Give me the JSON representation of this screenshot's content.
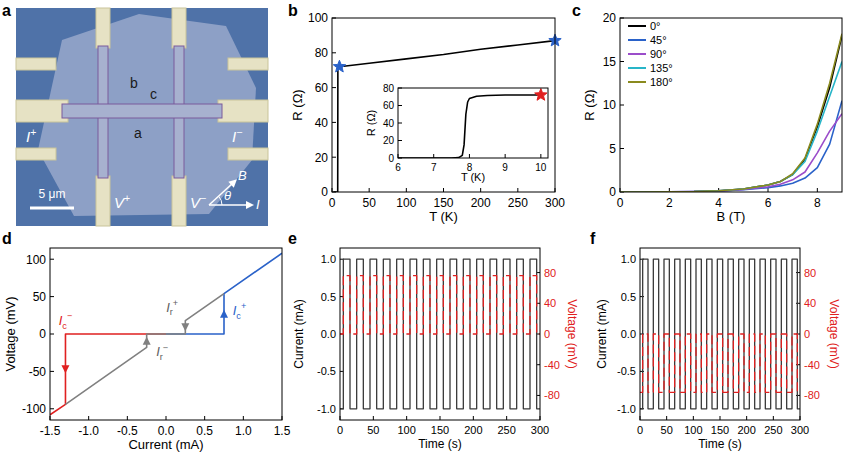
{
  "chart_data": [
    {
      "type": "image",
      "panel_label": "a",
      "labels": [
        "I+",
        "I−",
        "V+",
        "V−",
        "a",
        "b",
        "c"
      ],
      "scale_bar": "5 μm",
      "axis_labels": [
        "B",
        "θ",
        "I"
      ]
    },
    {
      "type": "line",
      "panel_label": "b",
      "x_label": "T (K)",
      "y_label": "R (Ω)",
      "xlim": [
        0,
        300
      ],
      "xticks": [
        0,
        50,
        100,
        150,
        200,
        250,
        300
      ],
      "ylim": [
        0,
        100
      ],
      "yticks": [
        0,
        20,
        40,
        60,
        80,
        100
      ],
      "x": [
        2,
        5,
        7,
        7.7,
        7.9,
        8.5,
        10,
        50,
        100,
        150,
        200,
        250,
        300
      ],
      "series": [
        {
          "color": "#000000",
          "values": [
            0,
            0,
            0,
            0,
            70,
            72,
            72,
            74,
            76.5,
            79,
            82,
            84.5,
            87
          ]
        },
        {
          "type": "scatter",
          "marker": "star",
          "color": "#2a62c9",
          "x": [
            10,
            300
          ],
          "values": [
            72,
            87
          ]
        }
      ],
      "inset": {
        "type": "line",
        "x_label": "T (K)",
        "y_label": "R (Ω)",
        "xlim": [
          6,
          10.2
        ],
        "xticks": [
          6,
          7,
          8,
          9,
          10
        ],
        "ylim": [
          0,
          80
        ],
        "yticks": [
          0,
          20,
          40,
          60,
          80
        ],
        "x": [
          6,
          7,
          7.5,
          7.7,
          7.8,
          7.85,
          7.9,
          7.95,
          8,
          8.2,
          8.5,
          9,
          9.5,
          10
        ],
        "series": [
          {
            "color": "#000000",
            "values": [
              0,
              0,
              0,
              0.5,
              3,
              15,
              50,
              64,
              68,
              70.5,
              71.5,
              72,
              72,
              72
            ]
          },
          {
            "type": "scatter",
            "marker": "star",
            "color": "#e02020",
            "x": [
              10
            ],
            "values": [
              72
            ]
          }
        ]
      }
    },
    {
      "type": "line",
      "panel_label": "c",
      "x_label": "B (T)",
      "y_label": "R (Ω)",
      "xlim": [
        0,
        9
      ],
      "xticks": [
        0,
        2,
        4,
        6,
        8
      ],
      "ylim": [
        0,
        20
      ],
      "yticks": [
        0,
        5,
        10,
        15,
        20
      ],
      "legend": "upper left",
      "x": [
        0,
        1,
        2,
        3,
        4,
        5,
        6,
        6.5,
        7,
        7.5,
        8,
        8.5,
        9
      ],
      "series": [
        {
          "name": "0°",
          "color": "#000000",
          "values": [
            0,
            0,
            0.02,
            0.05,
            0.15,
            0.35,
            0.8,
            1.2,
            2.0,
            3.8,
            7.5,
            12,
            18
          ]
        },
        {
          "name": "45°",
          "color": "#2a62c9",
          "values": [
            0,
            0,
            0.02,
            0.05,
            0.1,
            0.25,
            0.5,
            0.7,
            1.0,
            1.6,
            2.8,
            5.5,
            10.5
          ]
        },
        {
          "name": "90°",
          "color": "#9b4dca",
          "values": [
            0,
            0,
            0.02,
            0.05,
            0.1,
            0.3,
            0.6,
            0.9,
            1.4,
            2.3,
            4.5,
            7,
            9
          ]
        },
        {
          "name": "135°",
          "color": "#28b5c8",
          "values": [
            0,
            0,
            0.02,
            0.05,
            0.15,
            0.35,
            0.8,
            1.2,
            2.0,
            3.5,
            7,
            11,
            15
          ]
        },
        {
          "name": "180°",
          "color": "#8a8a1e",
          "values": [
            0,
            0,
            0.02,
            0.05,
            0.15,
            0.35,
            0.8,
            1.2,
            2.1,
            3.9,
            7.8,
            12.5,
            18.2
          ]
        }
      ]
    },
    {
      "type": "line",
      "panel_label": "d",
      "x_label": "Current (mA)",
      "y_label": "Voltage (mV)",
      "xlim": [
        -1.5,
        1.5
      ],
      "xticks": [
        -1.5,
        {
          "value": -1,
          "label": "-1.0"
        },
        -0.5,
        {
          "value": 0,
          "label": "0.0"
        },
        0.5,
        {
          "value": 1,
          "label": "1.0"
        },
        1.5
      ],
      "ylim": [
        -115,
        115
      ],
      "yticks": [
        -100,
        -50,
        0,
        50,
        100
      ],
      "series": [
        {
          "color": "#2a62c9",
          "marker": "arrow",
          "x": [
            0,
            0.75,
            0.75,
            1.5
          ],
          "values": [
            0,
            0,
            54,
            108
          ]
        },
        {
          "color": "#e02020",
          "marker": "arrow",
          "x": [
            0,
            -1.3,
            -1.3,
            -1.5
          ],
          "values": [
            0,
            0,
            -94,
            -108
          ]
        },
        {
          "color": "#808080",
          "marker": "arrow",
          "x": [
            0.75,
            0.25,
            0.25,
            0
          ],
          "values": [
            54,
            18,
            0,
            0
          ]
        },
        {
          "color": "#808080",
          "marker": "arrow",
          "x": [
            -1.3,
            -0.25,
            -0.25,
            0
          ],
          "values": [
            -94,
            -18,
            0,
            0
          ]
        }
      ],
      "annotations": [
        {
          "text": "Ic−",
          "x": -1.3,
          "y": 12,
          "color": "#e02020"
        },
        {
          "text": "Ic+",
          "x": 0.95,
          "y": 25,
          "color": "#2a62c9"
        },
        {
          "text": "Ir+",
          "x": 0.08,
          "y": 30,
          "color": "#606060"
        },
        {
          "text": "Ir−",
          "x": -0.05,
          "y": -30,
          "color": "#606060"
        }
      ]
    },
    {
      "type": "line",
      "panel_label": "e",
      "x_label": "Time (s)",
      "y_label": "Current (mA)",
      "y2_label": "Voltage (mV)",
      "xlim": [
        0,
        300
      ],
      "xticks": [
        0,
        50,
        100,
        150,
        200,
        250,
        300
      ],
      "ylim": [
        -1.15,
        1.15
      ],
      "yticks": [
        {
          "value": -1,
          "label": "-1.0"
        },
        -0.5,
        {
          "value": 0,
          "label": "0.0"
        },
        0.5,
        {
          "value": 1,
          "label": "1.0"
        }
      ],
      "y2lim": [
        -112,
        112
      ],
      "y2ticks": [
        -80,
        -40,
        0,
        40,
        80
      ],
      "x": [
        0,
        5,
        5,
        15,
        15,
        25,
        25,
        35,
        35,
        45,
        45,
        55,
        55,
        65,
        65,
        75,
        75,
        85,
        85,
        95,
        95,
        105,
        105,
        115,
        115,
        125,
        125,
        135,
        135,
        145,
        145,
        155,
        155,
        165,
        165,
        175,
        175,
        185,
        185,
        195,
        195,
        205,
        205,
        215,
        215,
        225,
        225,
        235,
        235,
        245,
        245,
        255,
        255,
        265,
        265,
        275,
        275,
        285,
        285,
        295,
        295,
        300
      ],
      "series": [
        {
          "color": "#3a3a3a",
          "values": [
            -1,
            -1,
            1,
            1,
            -1,
            -1,
            1,
            1,
            -1,
            -1,
            1,
            1,
            -1,
            -1,
            1,
            1,
            -1,
            -1,
            1,
            1,
            -1,
            -1,
            1,
            1,
            -1,
            -1,
            1,
            1,
            -1,
            -1,
            1,
            1,
            -1,
            -1,
            1,
            1,
            -1,
            -1,
            1,
            1,
            -1,
            -1,
            1,
            1,
            -1,
            -1,
            1,
            1,
            -1,
            -1,
            1,
            1,
            -1,
            -1,
            1,
            1,
            -1,
            -1,
            1,
            1,
            -1,
            -1
          ]
        },
        {
          "color": "#e02020",
          "axis": "y2",
          "line_style": "dashed",
          "values": [
            0,
            0,
            76,
            76,
            0,
            0,
            76,
            76,
            0,
            0,
            76,
            76,
            0,
            0,
            76,
            76,
            0,
            0,
            76,
            76,
            0,
            0,
            76,
            76,
            0,
            0,
            76,
            76,
            0,
            0,
            76,
            76,
            0,
            0,
            76,
            76,
            0,
            0,
            76,
            76,
            0,
            0,
            76,
            76,
            0,
            0,
            76,
            76,
            0,
            0,
            76,
            76,
            0,
            0,
            76,
            76,
            0,
            0,
            76,
            76,
            0,
            0
          ]
        }
      ]
    },
    {
      "type": "line",
      "panel_label": "f",
      "x_label": "Time (s)",
      "y_label": "Current (mA)",
      "y2_label": "Voltage (mV)",
      "xlim": [
        0,
        300
      ],
      "xticks": [
        0,
        50,
        100,
        150,
        200,
        250,
        300
      ],
      "ylim": [
        -1.15,
        1.15
      ],
      "yticks": [
        {
          "value": -1,
          "label": "-1.0"
        },
        -0.5,
        {
          "value": 0,
          "label": "0.0"
        },
        0.5,
        {
          "value": 1,
          "label": "1.0"
        }
      ],
      "y2lim": [
        -112,
        112
      ],
      "y2ticks": [
        -80,
        -40,
        0,
        40,
        80
      ],
      "x": [
        0,
        5,
        5,
        15,
        15,
        25,
        25,
        35,
        35,
        45,
        45,
        55,
        55,
        65,
        65,
        75,
        75,
        85,
        85,
        95,
        95,
        105,
        105,
        115,
        115,
        125,
        125,
        135,
        135,
        145,
        145,
        155,
        155,
        165,
        165,
        175,
        175,
        185,
        185,
        195,
        195,
        205,
        205,
        215,
        215,
        225,
        225,
        235,
        235,
        245,
        245,
        255,
        255,
        265,
        265,
        275,
        275,
        285,
        285,
        295,
        295,
        300
      ],
      "series": [
        {
          "color": "#3a3a3a",
          "values": [
            -1,
            -1,
            1,
            1,
            -1,
            -1,
            1,
            1,
            -1,
            -1,
            1,
            1,
            -1,
            -1,
            1,
            1,
            -1,
            -1,
            1,
            1,
            -1,
            -1,
            1,
            1,
            -1,
            -1,
            1,
            1,
            -1,
            -1,
            1,
            1,
            -1,
            -1,
            1,
            1,
            -1,
            -1,
            1,
            1,
            -1,
            -1,
            1,
            1,
            -1,
            -1,
            1,
            1,
            -1,
            -1,
            1,
            1,
            -1,
            -1,
            1,
            1,
            -1,
            -1,
            1,
            1,
            -1,
            -1
          ]
        },
        {
          "color": "#e02020",
          "axis": "y2",
          "line_style": "dashed",
          "values": [
            -76,
            -76,
            0,
            0,
            -76,
            -76,
            0,
            0,
            -76,
            -76,
            0,
            0,
            -76,
            -76,
            0,
            0,
            -76,
            -76,
            0,
            0,
            -76,
            -76,
            0,
            0,
            -76,
            -76,
            0,
            0,
            -76,
            -76,
            0,
            0,
            -76,
            -76,
            0,
            0,
            -76,
            -76,
            0,
            0,
            -76,
            -76,
            0,
            0,
            -76,
            -76,
            0,
            0,
            -76,
            -76,
            0,
            0,
            -76,
            -76,
            0,
            0,
            -76,
            -76,
            0,
            0,
            -76,
            -76
          ]
        }
      ]
    }
  ]
}
